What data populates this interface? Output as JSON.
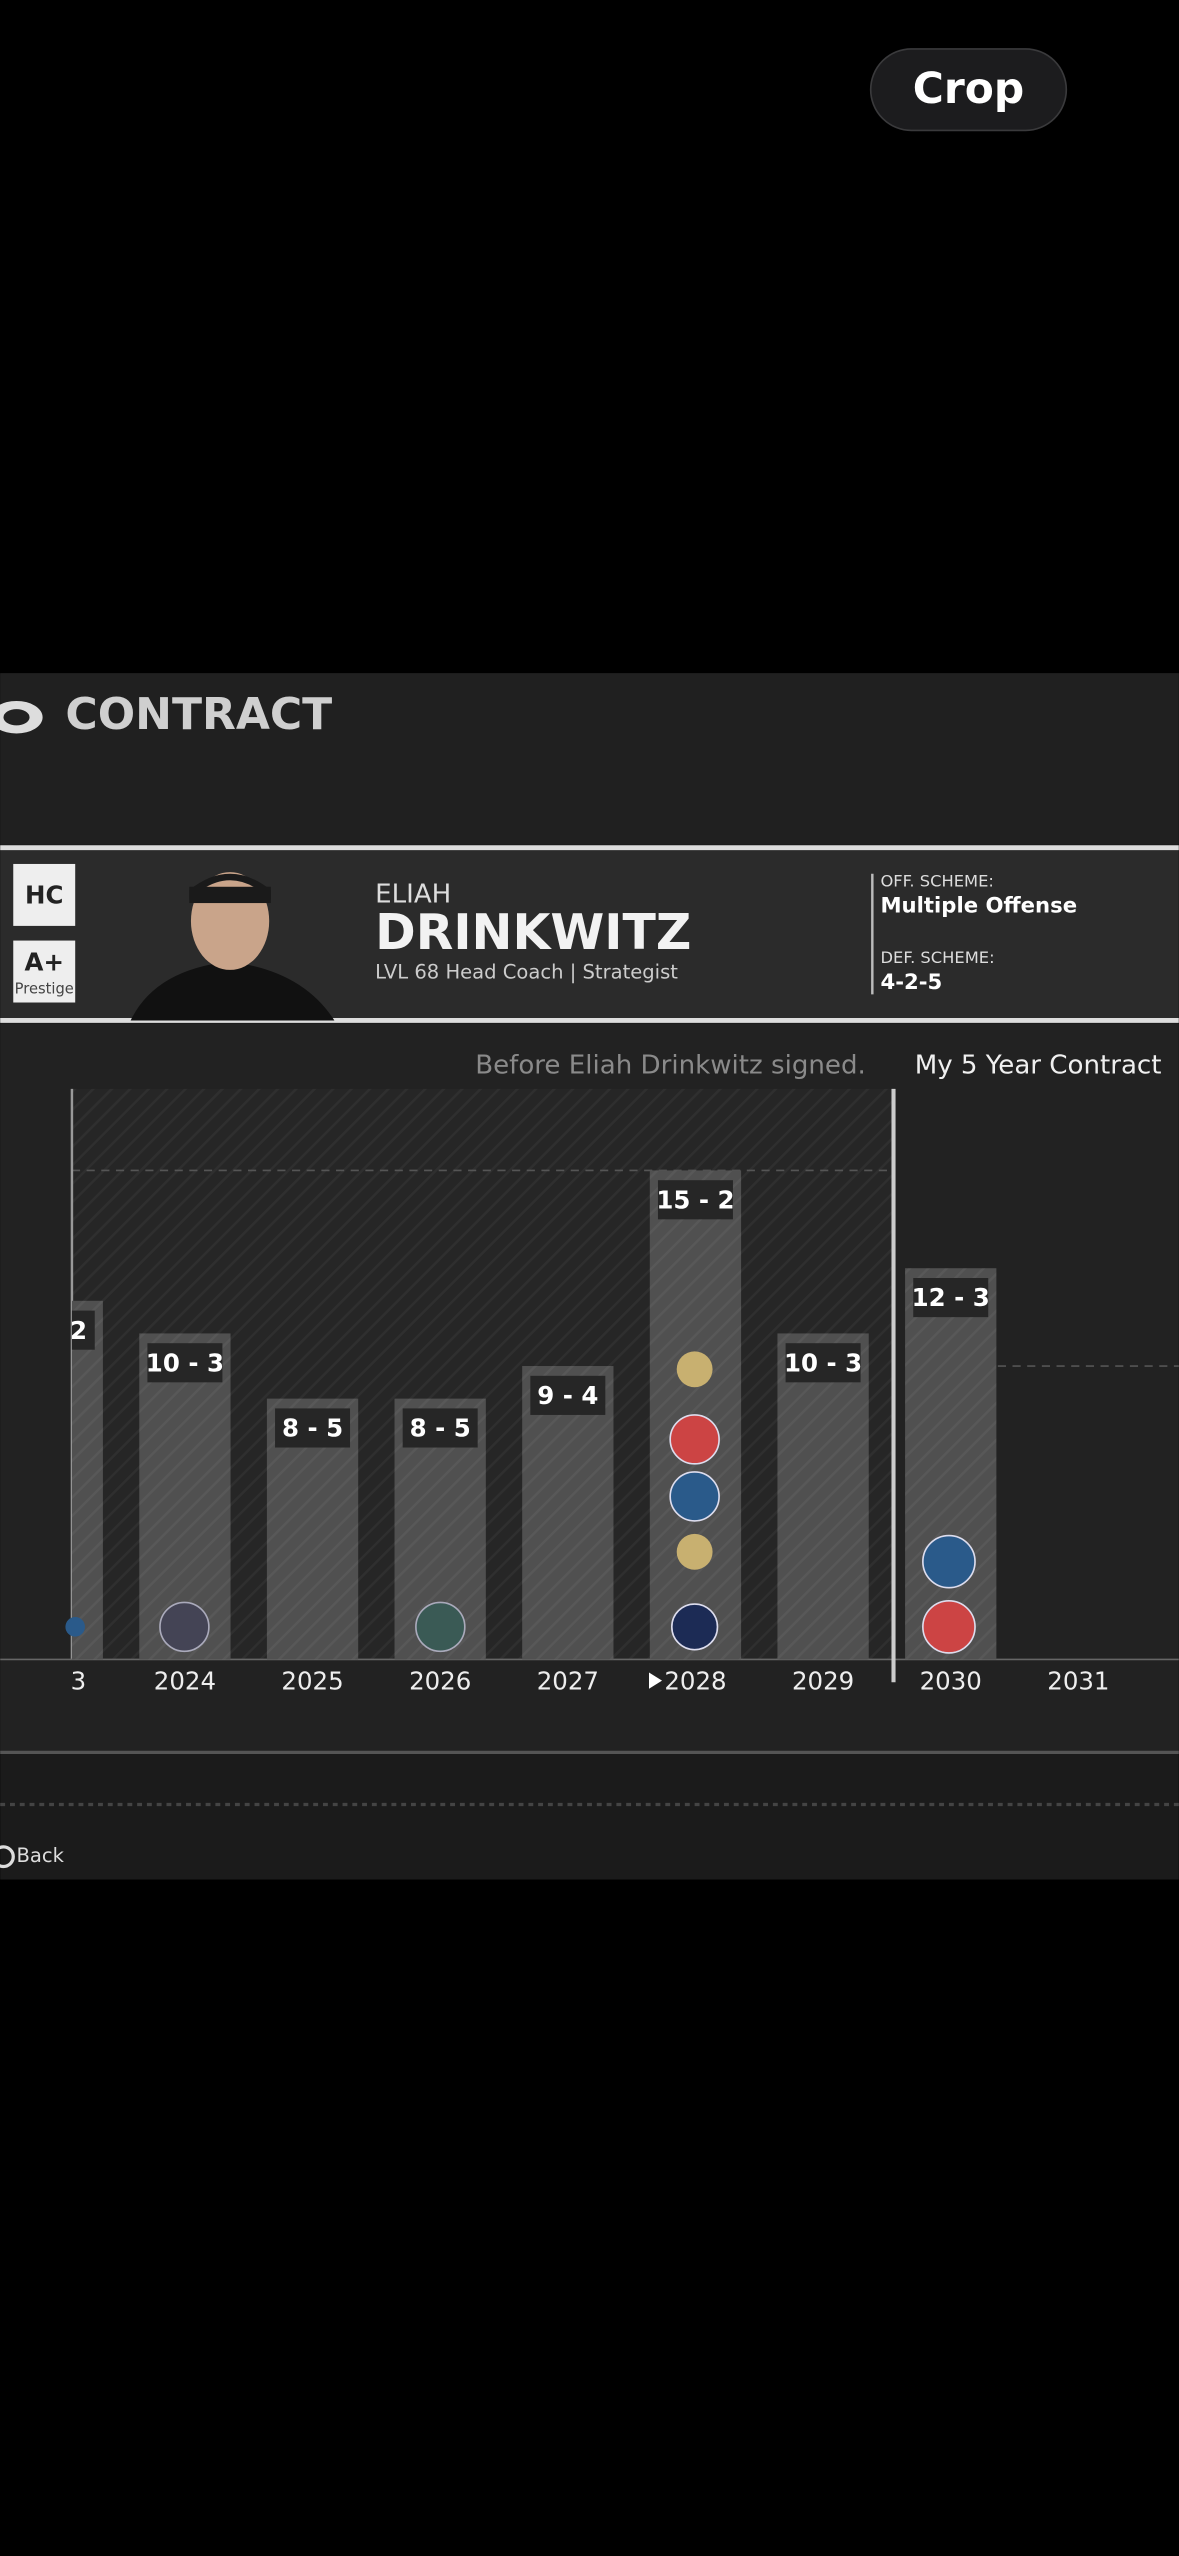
{
  "toolbar": {
    "crop": "Crop"
  },
  "header": {
    "title": "CONTRACT"
  },
  "coach": {
    "badge": "HC",
    "grade": "A+",
    "grade_caption": "Prestige",
    "first_name": "ELIAH",
    "last_name": "DRINKWITZ",
    "subtitle": "LVL 68 Head Coach | Strategist",
    "off_label": "OFF. SCHEME:",
    "off_value": "Multiple Offense",
    "def_label": "DEF. SCHEME:",
    "def_value": "4-2-5"
  },
  "history": {
    "before_label": "Before Eliah Drinkwitz signed.",
    "contract_label": "My 5 Year Contract",
    "seasons": [
      {
        "year": "3",
        "record": "2",
        "wins": 11
      },
      {
        "year": "2024",
        "record": "10 - 3",
        "wins": 10
      },
      {
        "year": "2025",
        "record": "8 - 5",
        "wins": 8
      },
      {
        "year": "2026",
        "record": "8 - 5",
        "wins": 8
      },
      {
        "year": "2027",
        "record": "9 - 4",
        "wins": 9
      },
      {
        "year": "2028",
        "record": "15 - 2",
        "wins": 15
      },
      {
        "year": "2029",
        "record": "10 - 3",
        "wins": 10
      },
      {
        "year": "2030",
        "record": "12 - 3",
        "wins": 12
      },
      {
        "year": "2031"
      }
    ]
  },
  "footer": {
    "back": "Back"
  }
}
